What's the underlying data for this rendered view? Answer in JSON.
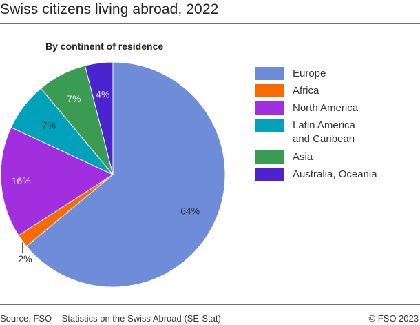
{
  "header": {
    "title": "Swiss citizens living abroad, 2022",
    "subtitle": "By continent of residence"
  },
  "footer": {
    "source": "Source: FSO – Statistics on the Swiss Abroad (SE-Stat)",
    "copyright": "© FSO 2023"
  },
  "legend": {
    "items": [
      {
        "label": "Europe",
        "color": "#6f8cd8"
      },
      {
        "label": "Africa",
        "color": "#f76b00"
      },
      {
        "label": "North America",
        "color": "#a12fdf"
      },
      {
        "label": "Latin America\nand Caribean",
        "color": "#00a1bb"
      },
      {
        "label": "Asia",
        "color": "#3a9b53"
      },
      {
        "label": "Australia, Oceania",
        "color": "#4b24cf"
      }
    ]
  },
  "chart_data": {
    "type": "pie",
    "title": "Swiss citizens living abroad, 2022",
    "subtitle": "By continent of residence",
    "categories": [
      "Europe",
      "Africa",
      "North America",
      "Latin America and Caribean",
      "Asia",
      "Australia, Oceania"
    ],
    "values": [
      64.0,
      1.9,
      16.0,
      7.0,
      7.1,
      4.0
    ],
    "data_labels": [
      "64%",
      "2%",
      "16%",
      "7%",
      "7%",
      "4%"
    ],
    "colors": [
      "#6f8cd8",
      "#f76b00",
      "#a12fdf",
      "#00a1bb",
      "#3a9b53",
      "#4b24cf"
    ],
    "start_angle": "12 o'clock, clockwise",
    "legend_position": "right",
    "source": "Source: FSO – Statistics on the Swiss Abroad (SE-Stat)"
  }
}
